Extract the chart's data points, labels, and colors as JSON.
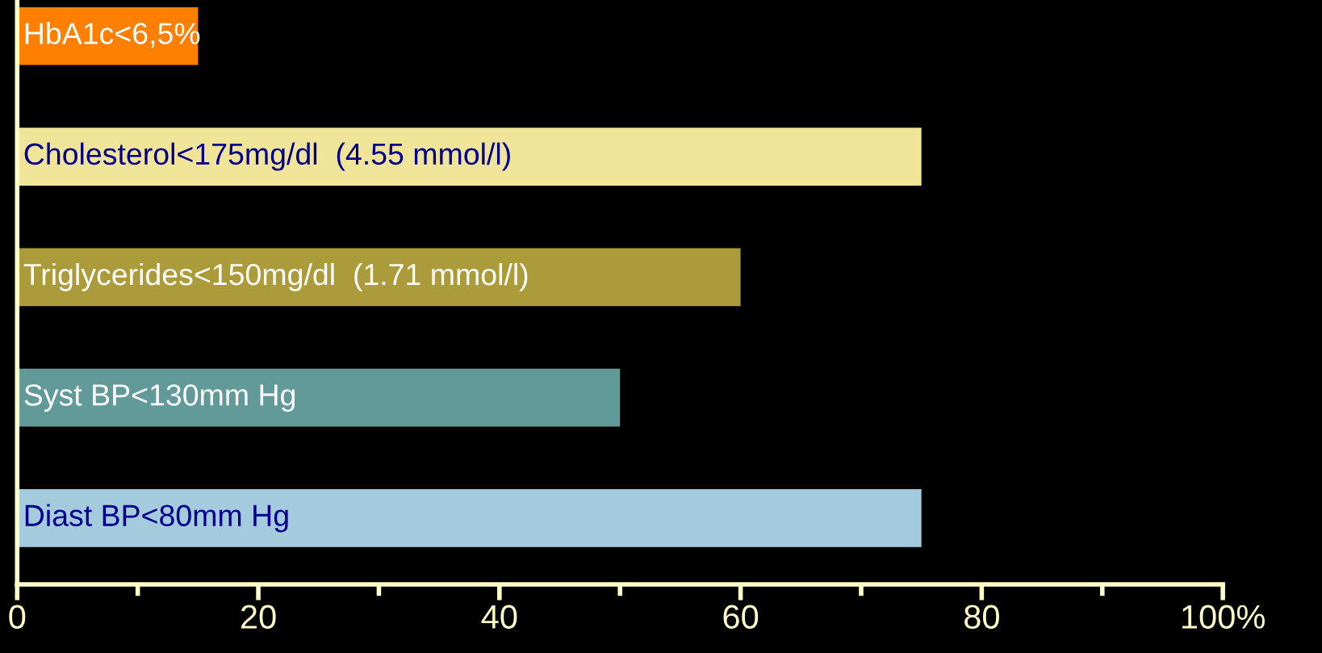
{
  "chart_data": {
    "type": "bar",
    "orientation": "horizontal",
    "categories": [
      "HbA1c<6,5%",
      "Cholesterol<175mg/dl  (4.55 mmol/l)",
      "Triglycerides<150mg/dl  (1.71 mmol/l)",
      "Syst BP<130mm Hg",
      "Diast BP<80mm Hg"
    ],
    "values": [
      15,
      75,
      60,
      50,
      75
    ],
    "colors": [
      "#ff7f00",
      "#f0e498",
      "#ab9b3a",
      "#629a9a",
      "#a3cbdd"
    ],
    "xlim": [
      0,
      100
    ],
    "xticks": [
      0,
      {
        "value": 10,
        "label": null
      },
      20,
      {
        "value": 30,
        "label": null
      },
      40,
      {
        "value": 50,
        "label": null
      },
      60,
      {
        "value": 70,
        "label": null
      },
      80,
      {
        "value": 90,
        "label": null
      },
      {
        "value": 100,
        "label": "100%"
      }
    ],
    "tick_labels": "x",
    "grid": false,
    "legend": false
  }
}
